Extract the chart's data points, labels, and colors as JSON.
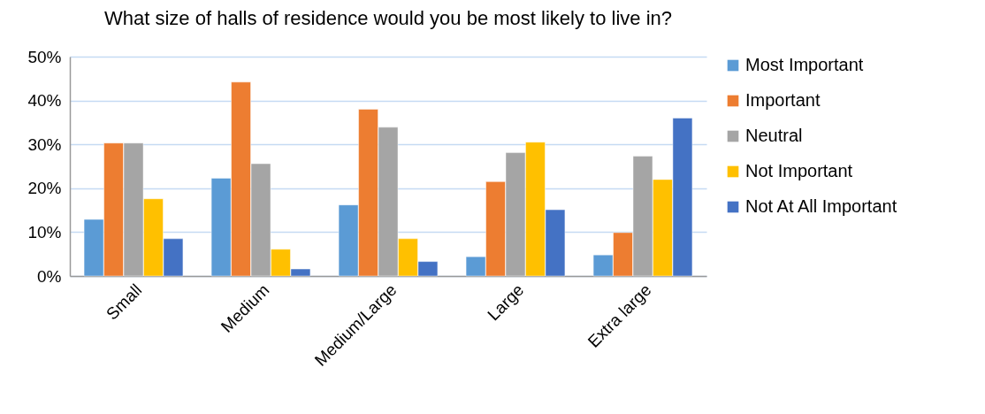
{
  "chart_data": {
    "type": "bar",
    "title": "What size of halls of residence would you be most likely to live in?",
    "categories": [
      "Small",
      "Medium",
      "Medium/Large",
      "Large",
      "Extra large"
    ],
    "series": [
      {
        "name": "Most Important",
        "color": "#5b9bd5",
        "values": [
          12.9,
          22.3,
          16.2,
          4.4,
          4.8
        ]
      },
      {
        "name": "Important",
        "color": "#ed7d31",
        "values": [
          30.3,
          44.2,
          38.0,
          21.5,
          9.9
        ]
      },
      {
        "name": "Neutral",
        "color": "#a5a5a5",
        "values": [
          30.3,
          25.6,
          33.9,
          28.1,
          27.3
        ]
      },
      {
        "name": "Not Important",
        "color": "#ffc000",
        "values": [
          17.6,
          6.1,
          8.5,
          30.5,
          22.0
        ]
      },
      {
        "name": "Not At All Important",
        "color": "#4472c4",
        "values": [
          8.5,
          1.6,
          3.3,
          15.1,
          36.0
        ]
      }
    ],
    "ylim": [
      0,
      50
    ],
    "yticks": [
      {
        "value": 0,
        "label": "0%"
      },
      {
        "value": 10,
        "label": "10%"
      },
      {
        "value": 20,
        "label": "20%"
      },
      {
        "value": 30,
        "label": "30%"
      },
      {
        "value": 40,
        "label": "40%"
      },
      {
        "value": 50,
        "label": "50%"
      }
    ],
    "grid": "y",
    "legend": "right"
  }
}
